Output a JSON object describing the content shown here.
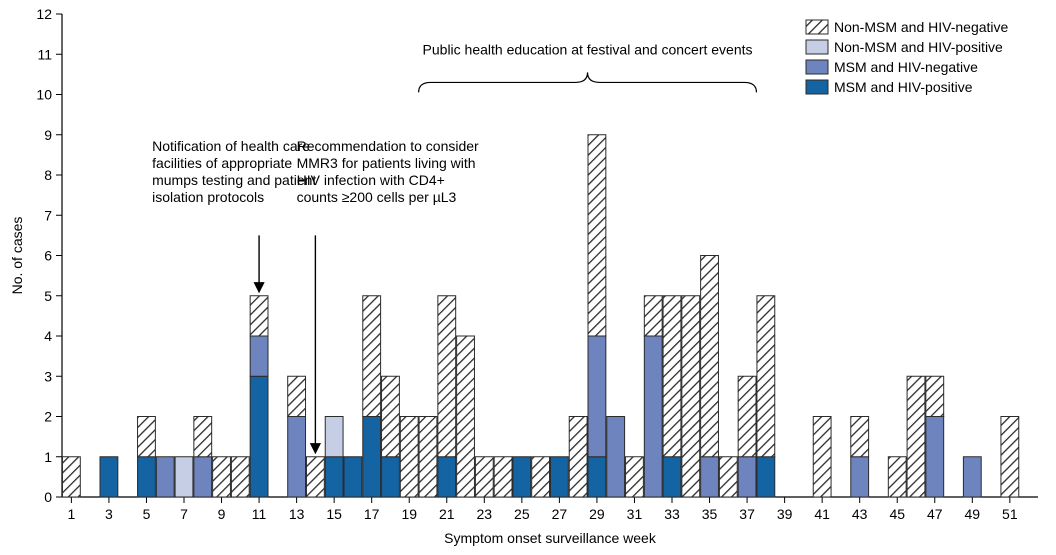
{
  "chart": {
    "type": "stacked-bar",
    "background_color": "#ffffff",
    "plot_border_color": "#000000",
    "grid_color": "none",
    "xlabel": "Symptom onset surveillance week",
    "ylabel": "No. of cases",
    "label_fontsize": 14,
    "tick_fontsize": 14,
    "ylim": [
      0,
      12
    ],
    "ytick_step": 1,
    "xticks": [
      1,
      3,
      5,
      7,
      9,
      11,
      13,
      15,
      17,
      19,
      21,
      23,
      25,
      27,
      29,
      31,
      33,
      35,
      37,
      39,
      41,
      43,
      45,
      47,
      49,
      51
    ],
    "bar_width": 0.95,
    "bar_border_color": "#2b2b2b",
    "series_order": [
      "msm_hiv_pos",
      "msm_hiv_neg",
      "nonmsm_hiv_pos",
      "nonmsm_hiv_neg"
    ],
    "series_colors": {
      "nonmsm_hiv_neg": "hatch",
      "nonmsm_hiv_pos": "#c6cee6",
      "msm_hiv_neg": "#6e84be",
      "msm_hiv_pos": "#1463a2"
    },
    "hatch_fg": "#2b2b2b",
    "hatch_bg": "#ffffff",
    "legend": {
      "position": "top-right",
      "items": [
        {
          "key": "nonmsm_hiv_neg",
          "label": "Non-MSM and HIV-negative"
        },
        {
          "key": "nonmsm_hiv_pos",
          "label": "Non-MSM and HIV-positive"
        },
        {
          "key": "msm_hiv_neg",
          "label": "MSM and HIV-negative"
        },
        {
          "key": "msm_hiv_pos",
          "label": "MSM and HIV-positive"
        }
      ]
    },
    "annotations": [
      {
        "id": "anno1",
        "lines": [
          "Notification of health care",
          "facilities of appropriate",
          "mumps testing and patient",
          "isolation protocols"
        ],
        "arrow_target_week": 11,
        "text_anchor": "start",
        "text_x_week": 5.3,
        "text_y_value": 8.6,
        "arrow_start_y_value": 6.5,
        "arrow_end_y_value": 5.2
      },
      {
        "id": "anno2",
        "lines": [
          "Recommendation to consider",
          "MMR3 for patients living with",
          "HIV infection with CD4+",
          "counts ≥200 cells per µL3"
        ],
        "arrow_target_week": 14,
        "text_anchor": "start",
        "text_x_week": 13.0,
        "text_y_value": 8.6,
        "arrow_start_y_value": 6.5,
        "arrow_end_y_value": 1.2
      },
      {
        "id": "anno3",
        "lines": [
          "Public health education at festival and concert events"
        ],
        "brace": {
          "from_week": 19.5,
          "to_week": 37.5,
          "y_value": 10.3
        },
        "text_anchor": "middle",
        "text_x_week": 28.5,
        "text_y_value": 11.0
      }
    ],
    "weeks": [
      1,
      2,
      3,
      4,
      5,
      6,
      7,
      8,
      9,
      10,
      11,
      12,
      13,
      14,
      15,
      16,
      17,
      18,
      19,
      20,
      21,
      22,
      23,
      24,
      25,
      26,
      27,
      28,
      29,
      30,
      31,
      32,
      33,
      34,
      35,
      36,
      37,
      38,
      39,
      40,
      41,
      42,
      43,
      44,
      45,
      46,
      47,
      48,
      49,
      50,
      51,
      52
    ],
    "data": {
      "msm_hiv_pos": [
        0,
        0,
        1,
        0,
        1,
        0,
        0,
        0,
        0,
        0,
        3,
        0,
        0,
        0,
        1,
        1,
        2,
        1,
        0,
        0,
        1,
        0,
        0,
        0,
        1,
        0,
        1,
        0,
        1,
        0,
        0,
        0,
        1,
        0,
        0,
        0,
        0,
        1,
        0,
        0,
        0,
        0,
        0,
        0,
        0,
        0,
        0,
        0,
        0,
        0,
        0,
        0
      ],
      "msm_hiv_neg": [
        0,
        0,
        0,
        0,
        0,
        1,
        0,
        1,
        0,
        0,
        1,
        0,
        2,
        0,
        0,
        0,
        0,
        0,
        0,
        0,
        0,
        0,
        0,
        0,
        0,
        0,
        0,
        0,
        3,
        2,
        0,
        4,
        0,
        0,
        1,
        0,
        1,
        0,
        0,
        0,
        0,
        0,
        1,
        0,
        0,
        0,
        2,
        0,
        1,
        0,
        0,
        0
      ],
      "nonmsm_hiv_pos": [
        0,
        0,
        0,
        0,
        0,
        0,
        1,
        0,
        0,
        0,
        0,
        0,
        0,
        0,
        1,
        0,
        0,
        0,
        0,
        0,
        0,
        0,
        0,
        0,
        0,
        0,
        0,
        0,
        0,
        0,
        0,
        0,
        0,
        0,
        0,
        0,
        0,
        0,
        0,
        0,
        0,
        0,
        0,
        0,
        0,
        0,
        0,
        0,
        0,
        0,
        0,
        0
      ],
      "nonmsm_hiv_neg": [
        1,
        0,
        0,
        0,
        1,
        0,
        0,
        1,
        1,
        1,
        1,
        0,
        1,
        1,
        0,
        0,
        3,
        2,
        2,
        2,
        4,
        4,
        1,
        1,
        0,
        1,
        0,
        2,
        5,
        0,
        1,
        1,
        4,
        5,
        5,
        1,
        2,
        4,
        0,
        0,
        2,
        0,
        1,
        0,
        1,
        3,
        1,
        0,
        0,
        0,
        2,
        0
      ]
    }
  }
}
